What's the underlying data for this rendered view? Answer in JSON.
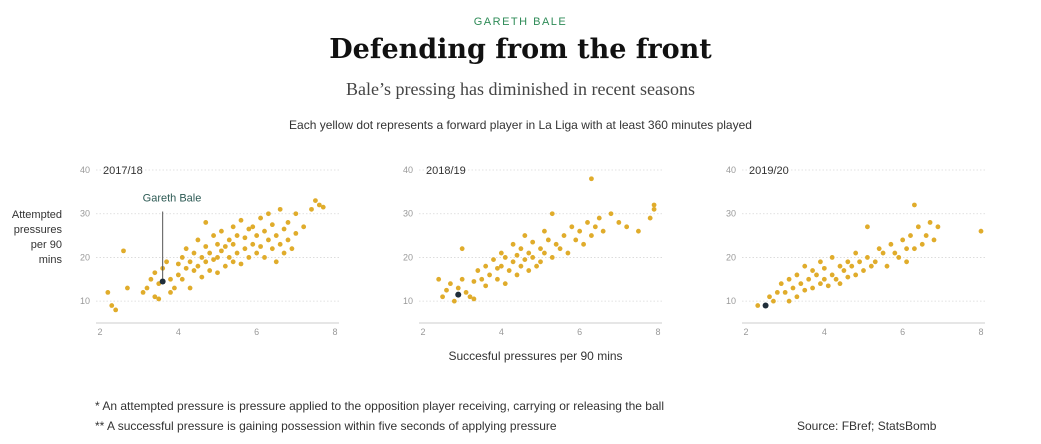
{
  "header": {
    "kicker": "GARETH BALE",
    "title": "Defending from the front",
    "subtitle": "Bale’s pressing has diminished in recent seasons",
    "description": "Each yellow dot represents a forward player in La Liga with at least 360 minutes played"
  },
  "footer": {
    "note1": "* An attempted pressure is pressure applied to the opposition player receiving, carrying or releasing the ball",
    "note2": "** A successful pressure is gaining possession within five seconds of applying pressure",
    "source": "Source: FBref; StatsBomb"
  },
  "colors": {
    "dot": "#e0ac2b",
    "highlight": "#1f2d3a",
    "annotation": "#2d5a54",
    "grid": "#d8d8d8",
    "tick": "#999999"
  },
  "chart_data": {
    "type": "scatter",
    "xlabel": "Succesful pressures per 90 mins",
    "ylabel": "Attempted\npressures\nper 90\nmins",
    "xlim": [
      2,
      8
    ],
    "ylim": [
      5,
      40
    ],
    "xticks": [
      2,
      4,
      6,
      8
    ],
    "yticks": [
      10,
      20,
      30,
      40
    ],
    "annotation_label": "Gareth Bale",
    "panels": [
      {
        "season": "2017/18",
        "highlight": {
          "x": 3.6,
          "y": 14.5
        },
        "points": [
          [
            2.2,
            12
          ],
          [
            2.3,
            9
          ],
          [
            2.4,
            8
          ],
          [
            2.6,
            21.5
          ],
          [
            2.7,
            13
          ],
          [
            3.1,
            12
          ],
          [
            3.2,
            13
          ],
          [
            3.3,
            15
          ],
          [
            3.4,
            11
          ],
          [
            3.4,
            16.5
          ],
          [
            3.5,
            10.5
          ],
          [
            3.5,
            14
          ],
          [
            3.6,
            17.5
          ],
          [
            3.7,
            19
          ],
          [
            3.8,
            15
          ],
          [
            3.8,
            12
          ],
          [
            3.9,
            13
          ],
          [
            4.0,
            16
          ],
          [
            4.0,
            18.5
          ],
          [
            4.1,
            20
          ],
          [
            4.1,
            15
          ],
          [
            4.2,
            17.5
          ],
          [
            4.2,
            22
          ],
          [
            4.3,
            19
          ],
          [
            4.3,
            13
          ],
          [
            4.4,
            21
          ],
          [
            4.4,
            17
          ],
          [
            4.5,
            24
          ],
          [
            4.5,
            18
          ],
          [
            4.6,
            20
          ],
          [
            4.6,
            15.5
          ],
          [
            4.7,
            22.5
          ],
          [
            4.7,
            19
          ],
          [
            4.7,
            28
          ],
          [
            4.8,
            21
          ],
          [
            4.8,
            17
          ],
          [
            4.9,
            25
          ],
          [
            4.9,
            19.5
          ],
          [
            5.0,
            23
          ],
          [
            5.0,
            20
          ],
          [
            5.0,
            16.5
          ],
          [
            5.1,
            21.5
          ],
          [
            5.1,
            26
          ],
          [
            5.2,
            18
          ],
          [
            5.2,
            22.5
          ],
          [
            5.3,
            24
          ],
          [
            5.3,
            20
          ],
          [
            5.4,
            27
          ],
          [
            5.4,
            19
          ],
          [
            5.4,
            23
          ],
          [
            5.5,
            21
          ],
          [
            5.5,
            25
          ],
          [
            5.6,
            18.5
          ],
          [
            5.6,
            28.5
          ],
          [
            5.7,
            22
          ],
          [
            5.7,
            24.5
          ],
          [
            5.8,
            20
          ],
          [
            5.8,
            26.5
          ],
          [
            5.9,
            23
          ],
          [
            5.9,
            27
          ],
          [
            6.0,
            21
          ],
          [
            6.0,
            25
          ],
          [
            6.1,
            29
          ],
          [
            6.1,
            22.5
          ],
          [
            6.2,
            20
          ],
          [
            6.2,
            26
          ],
          [
            6.3,
            24
          ],
          [
            6.3,
            30
          ],
          [
            6.4,
            22
          ],
          [
            6.4,
            27.5
          ],
          [
            6.5,
            25
          ],
          [
            6.5,
            19
          ],
          [
            6.6,
            23
          ],
          [
            6.6,
            31
          ],
          [
            6.7,
            21
          ],
          [
            6.7,
            26.5
          ],
          [
            6.8,
            24
          ],
          [
            6.8,
            28
          ],
          [
            6.9,
            22
          ],
          [
            7.0,
            25.5
          ],
          [
            7.0,
            30
          ],
          [
            7.2,
            27
          ],
          [
            7.4,
            31
          ],
          [
            7.5,
            33
          ],
          [
            7.6,
            32
          ],
          [
            7.7,
            31.5
          ]
        ]
      },
      {
        "season": "2018/19",
        "highlight": {
          "x": 2.9,
          "y": 11.5
        },
        "points": [
          [
            2.4,
            15
          ],
          [
            2.5,
            11
          ],
          [
            2.6,
            12.5
          ],
          [
            2.7,
            14
          ],
          [
            2.8,
            10
          ],
          [
            2.9,
            13
          ],
          [
            3.0,
            15
          ],
          [
            3.0,
            22
          ],
          [
            3.1,
            12
          ],
          [
            3.2,
            11
          ],
          [
            3.3,
            14.5
          ],
          [
            3.3,
            10.5
          ],
          [
            3.4,
            17
          ],
          [
            3.5,
            15
          ],
          [
            3.6,
            18
          ],
          [
            3.6,
            13.5
          ],
          [
            3.7,
            16
          ],
          [
            3.8,
            19.5
          ],
          [
            3.9,
            15
          ],
          [
            3.9,
            17.5
          ],
          [
            4.0,
            18
          ],
          [
            4.0,
            21
          ],
          [
            4.1,
            14
          ],
          [
            4.1,
            20
          ],
          [
            4.2,
            17
          ],
          [
            4.3,
            19
          ],
          [
            4.3,
            23
          ],
          [
            4.4,
            16
          ],
          [
            4.4,
            20.5
          ],
          [
            4.5,
            22
          ],
          [
            4.5,
            18
          ],
          [
            4.6,
            25
          ],
          [
            4.6,
            19.5
          ],
          [
            4.7,
            17
          ],
          [
            4.7,
            21
          ],
          [
            4.8,
            23.5
          ],
          [
            4.8,
            20
          ],
          [
            4.9,
            18
          ],
          [
            5.0,
            22
          ],
          [
            5.0,
            19
          ],
          [
            5.1,
            26
          ],
          [
            5.1,
            21
          ],
          [
            5.2,
            24
          ],
          [
            5.3,
            20
          ],
          [
            5.3,
            30
          ],
          [
            5.4,
            23
          ],
          [
            5.5,
            22
          ],
          [
            5.6,
            25
          ],
          [
            5.7,
            21
          ],
          [
            5.8,
            27
          ],
          [
            5.9,
            24
          ],
          [
            6.0,
            26
          ],
          [
            6.1,
            23
          ],
          [
            6.2,
            28
          ],
          [
            6.3,
            25
          ],
          [
            6.3,
            38
          ],
          [
            6.4,
            27
          ],
          [
            6.5,
            29
          ],
          [
            6.6,
            26
          ],
          [
            6.8,
            30
          ],
          [
            7.0,
            28
          ],
          [
            7.2,
            27
          ],
          [
            7.5,
            26
          ],
          [
            7.8,
            29
          ],
          [
            7.9,
            32
          ],
          [
            7.9,
            31
          ]
        ]
      },
      {
        "season": "2019/20",
        "highlight": {
          "x": 2.5,
          "y": 9
        },
        "points": [
          [
            2.3,
            9
          ],
          [
            2.6,
            11
          ],
          [
            2.7,
            10
          ],
          [
            2.8,
            12
          ],
          [
            2.9,
            14
          ],
          [
            3.0,
            12
          ],
          [
            3.1,
            10
          ],
          [
            3.1,
            15
          ],
          [
            3.2,
            13
          ],
          [
            3.3,
            11
          ],
          [
            3.3,
            16
          ],
          [
            3.4,
            14
          ],
          [
            3.5,
            12.5
          ],
          [
            3.5,
            18
          ],
          [
            3.6,
            15
          ],
          [
            3.7,
            13
          ],
          [
            3.7,
            17
          ],
          [
            3.8,
            16
          ],
          [
            3.9,
            14
          ],
          [
            3.9,
            19
          ],
          [
            4.0,
            15
          ],
          [
            4.0,
            17.5
          ],
          [
            4.1,
            13.5
          ],
          [
            4.2,
            16
          ],
          [
            4.2,
            20
          ],
          [
            4.3,
            15
          ],
          [
            4.4,
            18
          ],
          [
            4.4,
            14
          ],
          [
            4.5,
            17
          ],
          [
            4.6,
            19
          ],
          [
            4.6,
            15.5
          ],
          [
            4.7,
            18
          ],
          [
            4.8,
            16
          ],
          [
            4.8,
            21
          ],
          [
            4.9,
            19
          ],
          [
            5.0,
            17
          ],
          [
            5.1,
            20
          ],
          [
            5.1,
            27
          ],
          [
            5.2,
            18
          ],
          [
            5.3,
            19
          ],
          [
            5.4,
            22
          ],
          [
            5.5,
            21
          ],
          [
            5.6,
            18
          ],
          [
            5.7,
            23
          ],
          [
            5.8,
            21
          ],
          [
            5.9,
            20
          ],
          [
            6.0,
            24
          ],
          [
            6.1,
            22
          ],
          [
            6.1,
            19
          ],
          [
            6.2,
            25
          ],
          [
            6.3,
            32
          ],
          [
            6.3,
            22
          ],
          [
            6.4,
            27
          ],
          [
            6.5,
            23
          ],
          [
            6.6,
            25
          ],
          [
            6.7,
            28
          ],
          [
            6.8,
            24
          ],
          [
            6.9,
            27
          ],
          [
            8.0,
            26
          ]
        ]
      }
    ]
  }
}
